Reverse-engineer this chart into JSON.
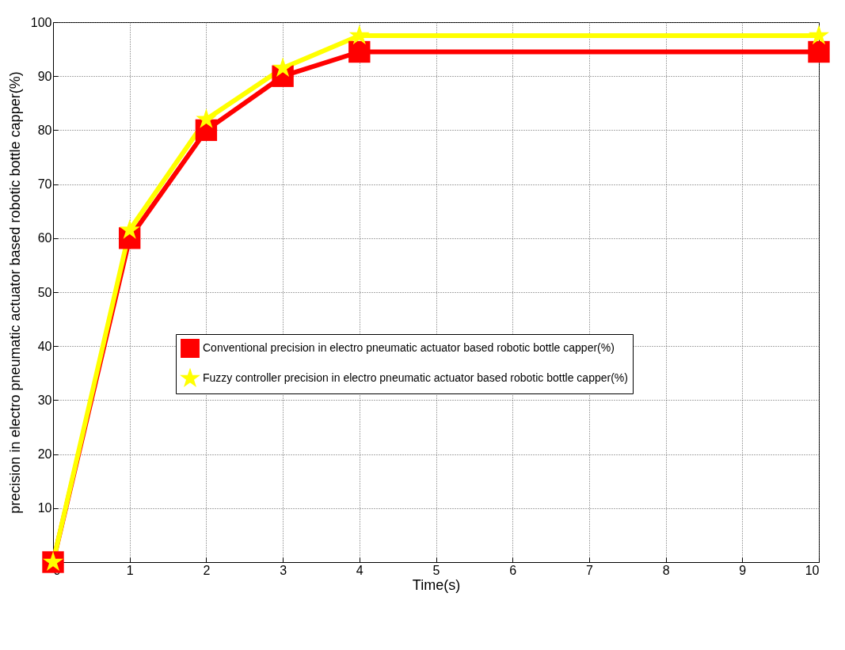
{
  "chart_data": {
    "type": "line",
    "xlabel": "Time(s)",
    "ylabel": "precision in electro pneumatic actuator based robotic bottle capper(%)",
    "x": [
      0,
      1,
      2,
      3,
      4,
      10
    ],
    "series": [
      {
        "name": "Conventional precision in electro pneumatic actuator based robotic bottle capper(%)",
        "color": "#ff0000",
        "marker": "square",
        "values": [
          0,
          60,
          80,
          90,
          94.5,
          94.5
        ]
      },
      {
        "name": "Fuzzy controller precision in electro pneumatic actuator based robotic bottle capper(%)",
        "color": "#ffff00",
        "marker": "star",
        "values": [
          0,
          61.5,
          82,
          91.5,
          97.5,
          97.5
        ]
      }
    ],
    "xlim": [
      0,
      10
    ],
    "xticks": [
      0,
      1,
      2,
      3,
      4,
      5,
      6,
      7,
      8,
      9,
      10
    ],
    "ylim": [
      0,
      100
    ],
    "yticks": [
      {
        "value": 0,
        "label": null
      },
      10,
      20,
      30,
      40,
      50,
      60,
      70,
      80,
      90,
      100
    ],
    "grid": true,
    "legend": "right",
    "line_style": "solid"
  }
}
